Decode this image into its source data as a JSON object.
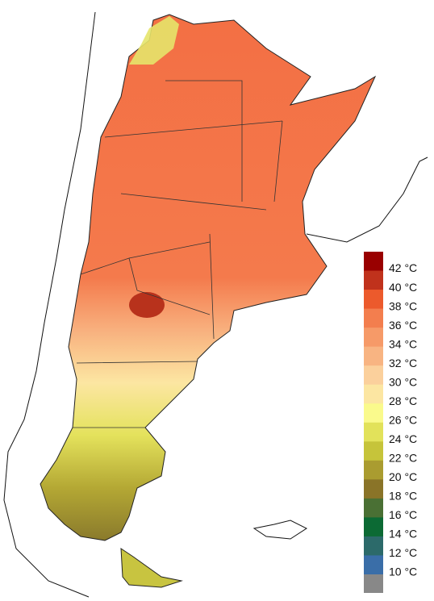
{
  "legend": {
    "items": [
      {
        "label": "42 °C",
        "color": "#990000"
      },
      {
        "label": "40 °C",
        "color": "#c0321c"
      },
      {
        "label": "38 °C",
        "color": "#ec5a2c"
      },
      {
        "label": "36 °C",
        "color": "#f37e4e"
      },
      {
        "label": "34 °C",
        "color": "#f69a68"
      },
      {
        "label": "32 °C",
        "color": "#f8b482"
      },
      {
        "label": "30 °C",
        "color": "#fbd09c"
      },
      {
        "label": "28 °C",
        "color": "#fce6a2"
      },
      {
        "label": "26 °C",
        "color": "#fafa8c"
      },
      {
        "label": "24 °C",
        "color": "#e2e25a"
      },
      {
        "label": "22 °C",
        "color": "#c6c43a"
      },
      {
        "label": "20 °C",
        "color": "#aa9c30"
      },
      {
        "label": "18 °C",
        "color": "#8a7428"
      },
      {
        "label": "16 °C",
        "color": "#4a7034"
      },
      {
        "label": "14 °C",
        "color": "#0c6a34"
      },
      {
        "label": "12 °C",
        "color": "#2c6a6a"
      },
      {
        "label": "10 °C",
        "color": "#3a6ea8"
      }
    ]
  }
}
